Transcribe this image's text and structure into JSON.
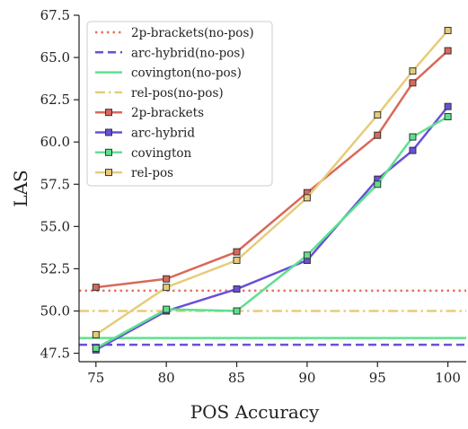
{
  "chart_data": {
    "type": "line",
    "xlabel": "POS Accuracy",
    "ylabel": "LAS",
    "xlim": [
      73.8,
      101.3
    ],
    "ylim": [
      47.0,
      67.5
    ],
    "xticks": [
      "75",
      "80",
      "85",
      "90",
      "95",
      "100"
    ],
    "yticks": [
      "47.5",
      "50.0",
      "52.5",
      "55.0",
      "57.5",
      "60.0",
      "62.5",
      "65.0",
      "67.5"
    ],
    "x": [
      75,
      80,
      85,
      90,
      95,
      97.5,
      100
    ],
    "grid": false,
    "legend_position": "top-left",
    "baselines": [
      {
        "name": "2p-brackets(no-pos)",
        "value": 51.2,
        "color": "#e8735f",
        "style": "dotted"
      },
      {
        "name": "arc-hybrid(no-pos)",
        "value": 48.0,
        "color": "#6a4fd8",
        "style": "dashed"
      },
      {
        "name": "covington(no-pos)",
        "value": 48.4,
        "color": "#5fe08f",
        "style": "solid"
      },
      {
        "name": "rel-pos(no-pos)",
        "value": 50.0,
        "color": "#e6cc7a",
        "style": "dashdot"
      }
    ],
    "series": [
      {
        "name": "2p-brackets",
        "color": "#d9685a",
        "values": [
          51.4,
          51.9,
          53.5,
          57.0,
          60.4,
          63.5,
          65.4
        ]
      },
      {
        "name": "arc-hybrid",
        "color": "#6a4fd8",
        "values": [
          47.7,
          50.0,
          51.3,
          53.0,
          57.8,
          59.5,
          62.1
        ]
      },
      {
        "name": "covington",
        "color": "#5fe08f",
        "values": [
          47.8,
          50.1,
          50.0,
          53.3,
          57.5,
          60.3,
          61.5
        ]
      },
      {
        "name": "rel-pos",
        "color": "#e6cc7a",
        "values": [
          48.6,
          51.4,
          53.0,
          56.7,
          61.6,
          64.2,
          66.6
        ]
      }
    ]
  }
}
